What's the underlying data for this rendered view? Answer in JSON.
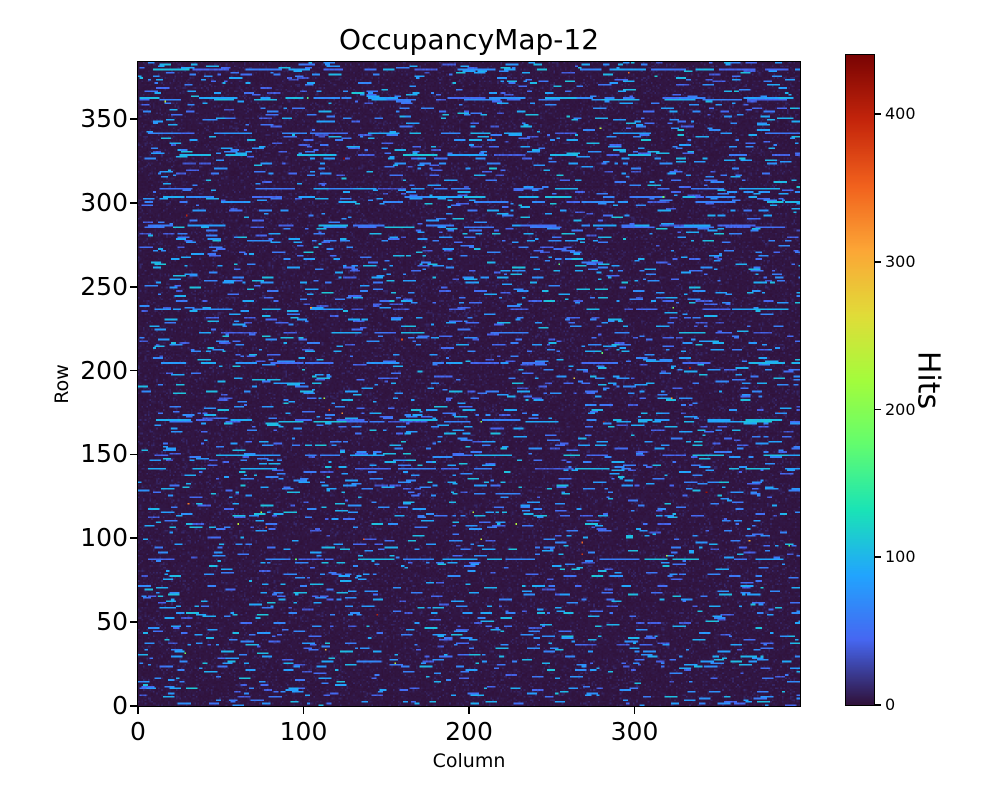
{
  "chart_data": {
    "type": "heatmap",
    "title": "OccupancyMap-12",
    "xlabel": "Column",
    "ylabel": "Row",
    "x_ticks": [
      0,
      100,
      200,
      300
    ],
    "y_ticks": [
      0,
      50,
      100,
      150,
      200,
      250,
      300,
      350
    ],
    "x_range": [
      0,
      400
    ],
    "y_range": [
      0,
      384
    ],
    "grid": {
      "cols": 400,
      "rows": 384
    },
    "colorbar": {
      "label": "Hits",
      "ticks": [
        0,
        100,
        200,
        300,
        400
      ],
      "vmin": 0,
      "vmax": 440
    },
    "colormap": {
      "name": "turbo",
      "stops": [
        [
          0.0,
          "#30123b"
        ],
        [
          0.1,
          "#4667f2"
        ],
        [
          0.2,
          "#21a5fe"
        ],
        [
          0.3,
          "#1ae4b6"
        ],
        [
          0.4,
          "#62fd6f"
        ],
        [
          0.5,
          "#a4fc3c"
        ],
        [
          0.6,
          "#e1dc38"
        ],
        [
          0.7,
          "#fca636"
        ],
        [
          0.8,
          "#f1611d"
        ],
        [
          0.9,
          "#c4250b"
        ],
        [
          1.0,
          "#7a0403"
        ]
      ]
    },
    "pattern": {
      "description": "Sparse pixel-detector occupancy map: near-zero dark background over a 400x384 grid, many short horizontal dash-like streaks of moderate hit counts (~35-120 hits) distributed across rows, a few nearly continuous streaky rows, and rare isolated hot pixels reaching up to ~440 hits (green/yellow/orange/red specks).",
      "value_stats": {
        "background": "0-12 hits (dark purple)",
        "dash_streaks": "35-120 hits (blue to cyan)",
        "hot_pixels": "150-440 hits (green to dark red)"
      }
    },
    "render": {
      "seed": 12,
      "streaky_row_prob": 0.05,
      "activity_min": 0.4,
      "activity_span": 1.1,
      "dash_prob": 0.022,
      "dash_prob_streaky": 0.07,
      "dash_len_min": 2,
      "dash_len_span": 7,
      "dash_len_streaky_min": 5,
      "dash_len_streaky_span": 20,
      "dash_val_min": 35,
      "dash_val_span": 75,
      "hot_prob": 0.00035,
      "hot_val_min": 150,
      "hot_val_span": 290
    }
  }
}
